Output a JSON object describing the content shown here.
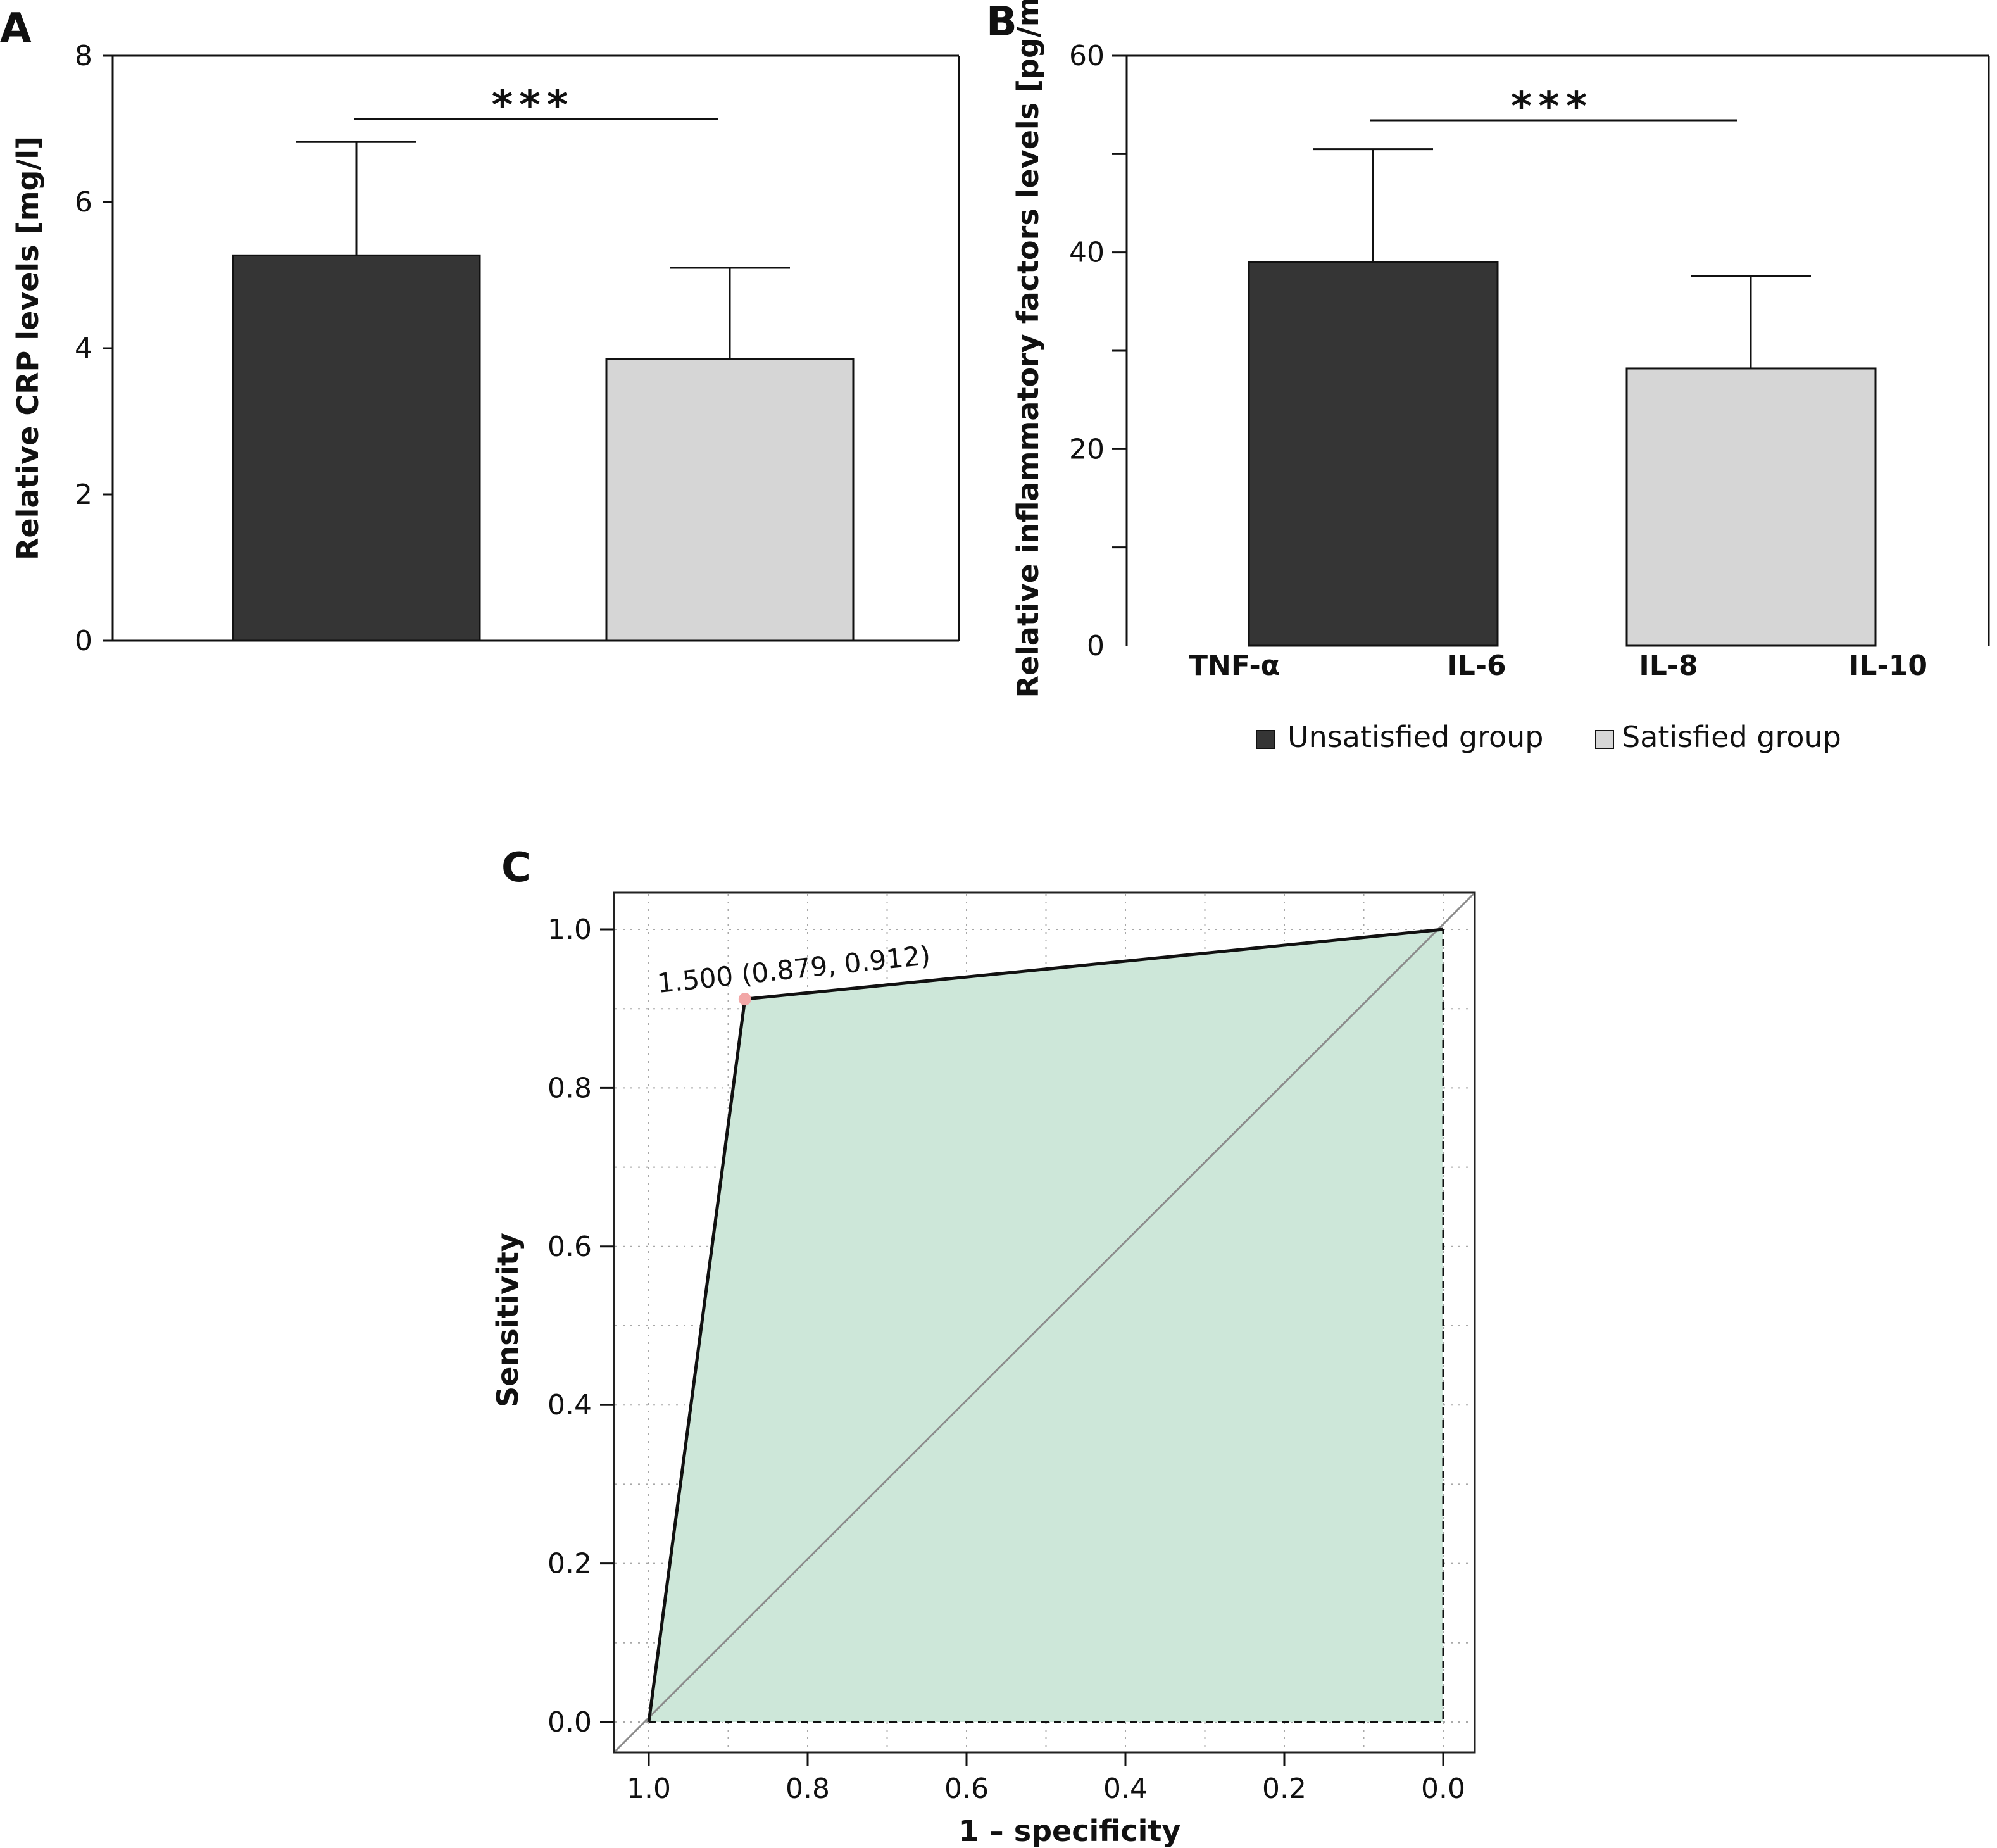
{
  "panels": {
    "a": "A",
    "b": "B",
    "c": "C"
  },
  "colors": {
    "unsatisfied": "#353535",
    "satisfied": "#d6d6d6",
    "roc_fill": "#cde7d9",
    "optimal_point": "#f2a7a7",
    "grid": "#a8a8a8"
  },
  "chart_data": [
    {
      "panel": "A",
      "type": "bar",
      "ylabel": "Relative CRP levels [mg/l]",
      "ylim": [
        0,
        8
      ],
      "yticks": [
        "0",
        "2",
        "4",
        "6",
        "8"
      ],
      "series": [
        {
          "name": "Unsatisfied group",
          "value": 5.27,
          "error": 1.55
        },
        {
          "name": "Satisfied group",
          "value": 3.85,
          "error": 1.25
        }
      ],
      "significance": "***"
    },
    {
      "panel": "B",
      "type": "bar",
      "ylabel": "Relative inflammatory factors levels [pg/ml]",
      "ylim": [
        0,
        60
      ],
      "yticks": [
        "0",
        "20",
        "40",
        "60"
      ],
      "categories": [
        "TNF-α",
        "IL-6",
        "IL-8",
        "IL-10"
      ],
      "series": [
        {
          "name": "Unsatisfied group",
          "value": 39.0,
          "error": 11.5
        },
        {
          "name": "Satisfied group",
          "value": 28.2,
          "error": 9.4
        }
      ],
      "significance": "***",
      "legend": [
        "Unsatisfied group",
        "Satisfied group"
      ]
    },
    {
      "panel": "C",
      "type": "line",
      "xlabel": "1 – specificity",
      "ylabel": "Sensitivity",
      "xlim": [
        1.0,
        0.0
      ],
      "ylim": [
        0.0,
        1.0
      ],
      "xticks": [
        "1.0",
        "0.8",
        "0.6",
        "0.4",
        "0.2",
        "0.0"
      ],
      "yticks": [
        "0.0",
        "0.2",
        "0.4",
        "0.6",
        "0.8",
        "1.0"
      ],
      "roc_points": [
        {
          "x": 1.0,
          "y": 0.0
        },
        {
          "x": 0.879,
          "y": 0.912
        },
        {
          "x": 0.0,
          "y": 1.0
        }
      ],
      "optimal_point": {
        "x": 0.879,
        "y": 0.912
      },
      "annotation": "1.500 (0.879, 0.912)"
    }
  ]
}
